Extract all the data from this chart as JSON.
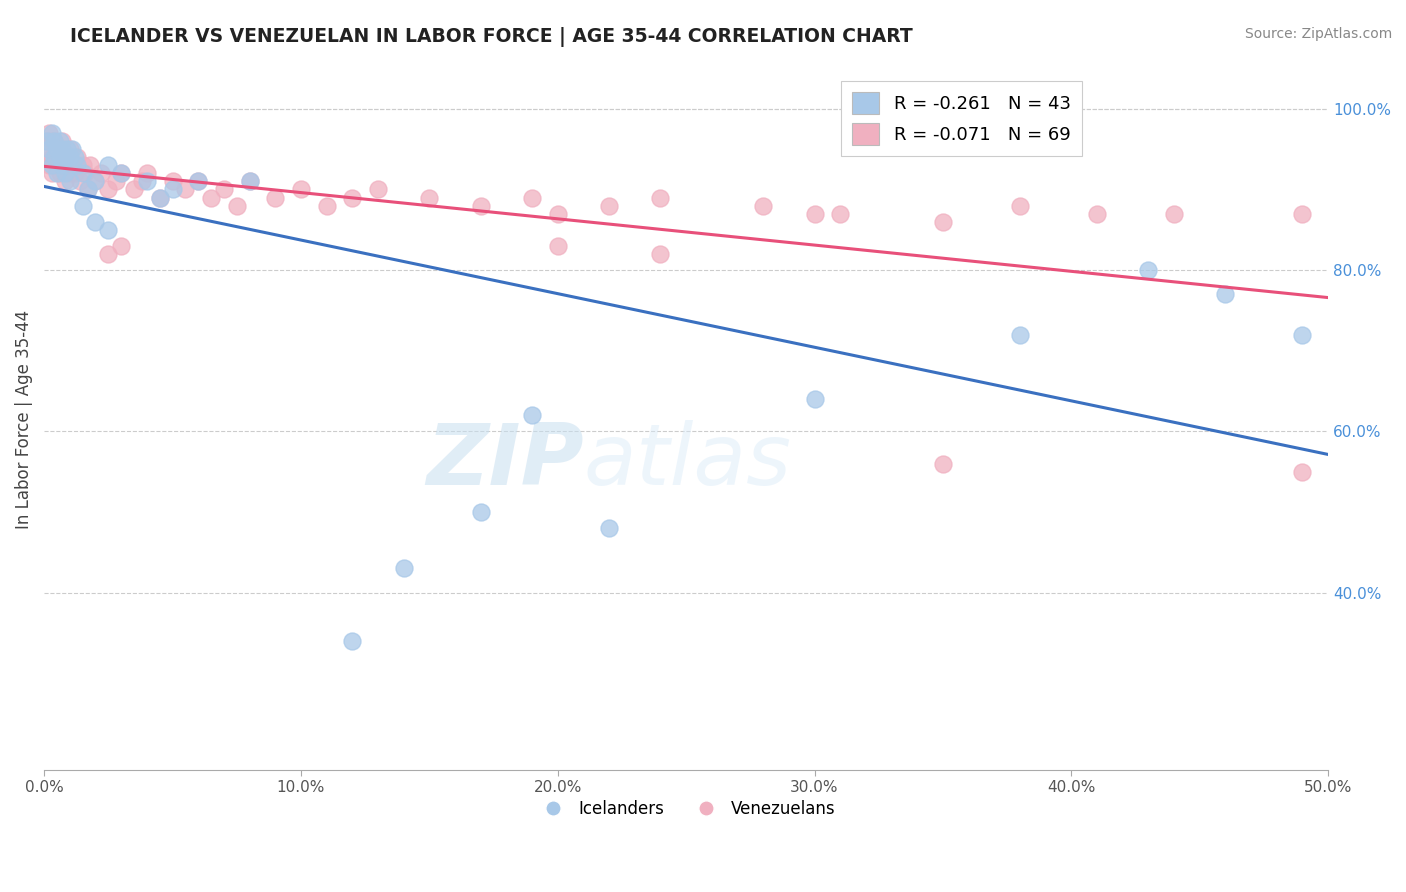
{
  "title": "ICELANDER VS VENEZUELAN IN LABOR FORCE | AGE 35-44 CORRELATION CHART",
  "source": "Source: ZipAtlas.com",
  "ylabel": "In Labor Force | Age 35-44",
  "xlim": [
    0.0,
    0.5
  ],
  "ylim": [
    0.18,
    1.05
  ],
  "xticks": [
    0.0,
    0.1,
    0.2,
    0.3,
    0.4,
    0.5
  ],
  "xtick_labels": [
    "0.0%",
    "10.0%",
    "20.0%",
    "30.0%",
    "40.0%",
    "50.0%"
  ],
  "yticks": [
    0.4,
    0.6,
    0.8,
    1.0
  ],
  "ytick_labels": [
    "40.0%",
    "60.0%",
    "80.0%",
    "100.0%"
  ],
  "legend_entries": [
    {
      "label": "R = -0.261   N = 43",
      "color": "#a8c8e8"
    },
    {
      "label": "R = -0.071   N = 69",
      "color": "#f0b0c0"
    }
  ],
  "icelanders_color": "#a8c8e8",
  "venezuelans_color": "#f0b0c0",
  "icelander_line_color": "#3a70c0",
  "venezuelan_line_color": "#e8507a",
  "watermark_zip": "ZIP",
  "watermark_atlas": "atlas",
  "icelanders_x": [
    0.001,
    0.002,
    0.003,
    0.003,
    0.004,
    0.004,
    0.005,
    0.005,
    0.006,
    0.006,
    0.007,
    0.007,
    0.008,
    0.008,
    0.009,
    0.01,
    0.01,
    0.011,
    0.012,
    0.013,
    0.015,
    0.017,
    0.02,
    0.025,
    0.03,
    0.04,
    0.05,
    0.06,
    0.08,
    0.015,
    0.02,
    0.025,
    0.19,
    0.3,
    0.38,
    0.17,
    0.22,
    0.14,
    0.12,
    0.49,
    0.43,
    0.46,
    0.045
  ],
  "icelanders_y": [
    0.96,
    0.95,
    0.97,
    0.93,
    0.94,
    0.96,
    0.95,
    0.92,
    0.94,
    0.96,
    0.93,
    0.95,
    0.94,
    0.92,
    0.95,
    0.94,
    0.91,
    0.95,
    0.94,
    0.93,
    0.92,
    0.9,
    0.91,
    0.93,
    0.92,
    0.91,
    0.9,
    0.91,
    0.91,
    0.88,
    0.86,
    0.85,
    0.62,
    0.64,
    0.72,
    0.5,
    0.48,
    0.43,
    0.34,
    0.72,
    0.8,
    0.77,
    0.89
  ],
  "venezuelans_x": [
    0.001,
    0.001,
    0.002,
    0.002,
    0.003,
    0.003,
    0.003,
    0.004,
    0.004,
    0.005,
    0.005,
    0.006,
    0.006,
    0.007,
    0.007,
    0.008,
    0.008,
    0.009,
    0.01,
    0.01,
    0.011,
    0.012,
    0.013,
    0.014,
    0.015,
    0.016,
    0.017,
    0.018,
    0.02,
    0.022,
    0.025,
    0.028,
    0.03,
    0.035,
    0.038,
    0.04,
    0.045,
    0.05,
    0.055,
    0.06,
    0.065,
    0.07,
    0.075,
    0.08,
    0.09,
    0.1,
    0.11,
    0.12,
    0.13,
    0.15,
    0.17,
    0.19,
    0.2,
    0.22,
    0.24,
    0.28,
    0.3,
    0.31,
    0.35,
    0.38,
    0.41,
    0.44,
    0.49,
    0.025,
    0.03,
    0.2,
    0.24,
    0.35,
    0.49
  ],
  "venezuelans_y": [
    0.96,
    0.94,
    0.97,
    0.93,
    0.96,
    0.94,
    0.92,
    0.96,
    0.93,
    0.95,
    0.93,
    0.95,
    0.92,
    0.94,
    0.96,
    0.93,
    0.91,
    0.94,
    0.95,
    0.92,
    0.93,
    0.92,
    0.94,
    0.91,
    0.93,
    0.92,
    0.9,
    0.93,
    0.91,
    0.92,
    0.9,
    0.91,
    0.92,
    0.9,
    0.91,
    0.92,
    0.89,
    0.91,
    0.9,
    0.91,
    0.89,
    0.9,
    0.88,
    0.91,
    0.89,
    0.9,
    0.88,
    0.89,
    0.9,
    0.89,
    0.88,
    0.89,
    0.87,
    0.88,
    0.89,
    0.88,
    0.87,
    0.87,
    0.86,
    0.88,
    0.87,
    0.87,
    0.87,
    0.82,
    0.83,
    0.83,
    0.82,
    0.56,
    0.55
  ]
}
